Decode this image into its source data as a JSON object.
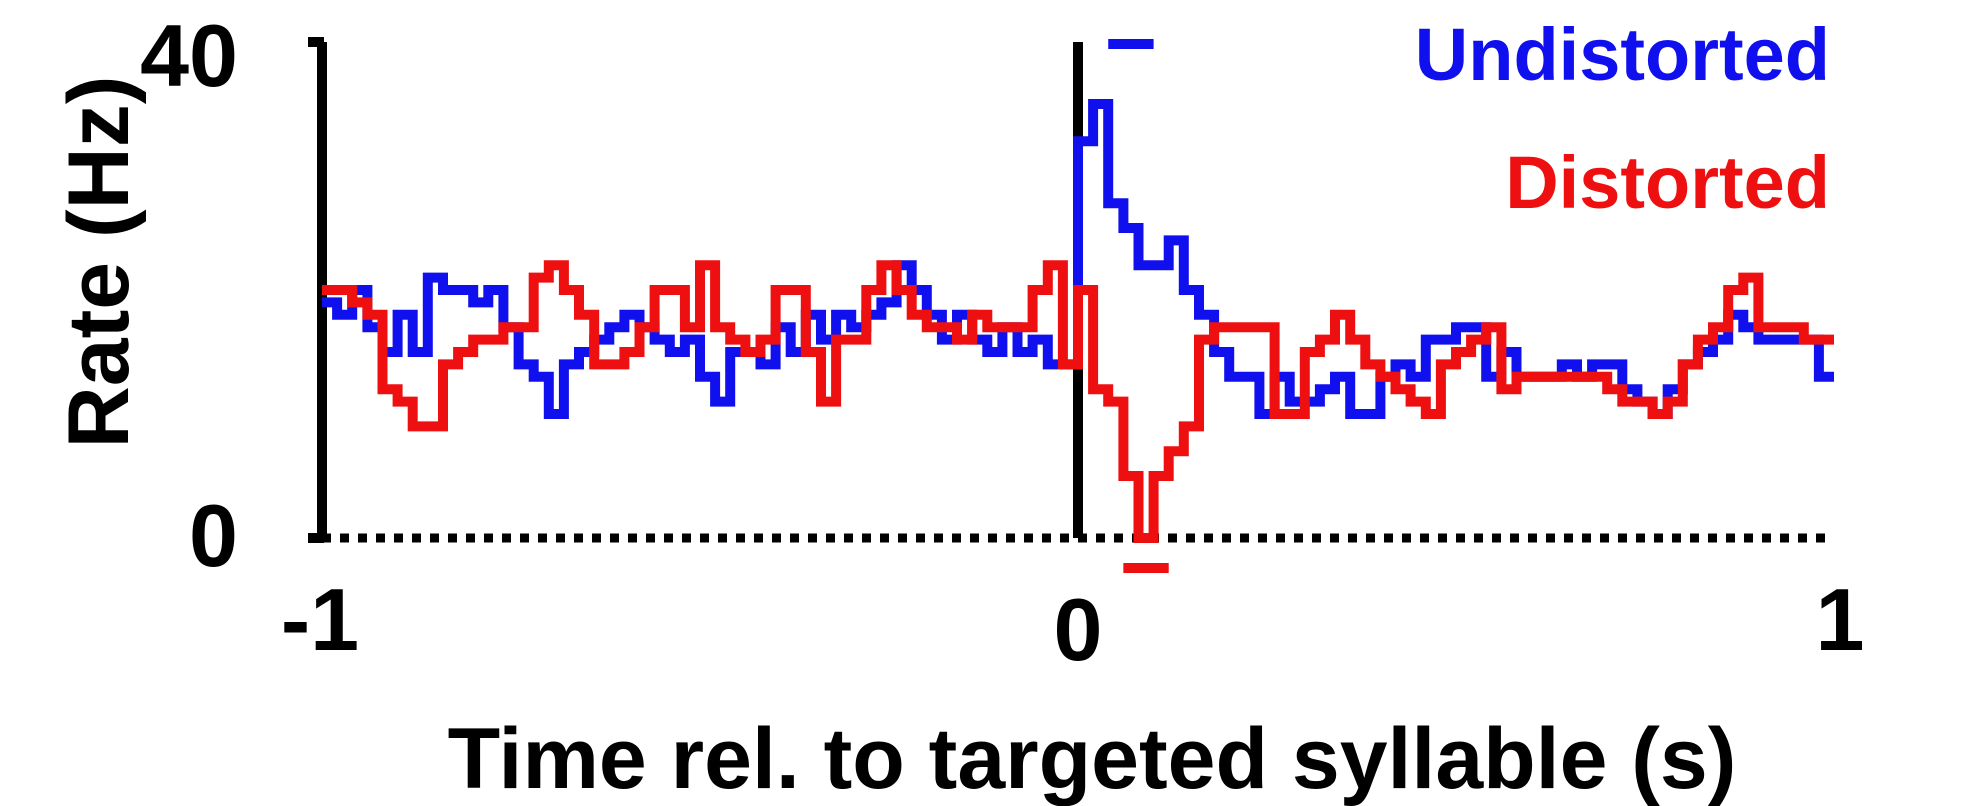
{
  "chart_data": {
    "type": "line",
    "step": true,
    "xlabel": "Time rel. to targeted syllable (s)",
    "ylabel": "Rate (Hz)",
    "xlim": [
      -1,
      1
    ],
    "ylim": [
      0,
      40
    ],
    "xticks": [
      {
        "value": -1,
        "label": "-1"
      },
      {
        "value": 0,
        "label": "0"
      },
      {
        "value": 1,
        "label": "1"
      }
    ],
    "yticks": [
      {
        "value": 0,
        "label": "0"
      },
      {
        "value": 40,
        "label": "40"
      }
    ],
    "legend_position": "top-right",
    "zero_line": "dotted",
    "event_marker_x": 0,
    "series": [
      {
        "name": "Undistorted",
        "color": "#1010ee",
        "x": [
          -1.0,
          -0.98,
          -0.96,
          -0.94,
          -0.92,
          -0.9,
          -0.88,
          -0.86,
          -0.84,
          -0.82,
          -0.8,
          -0.78,
          -0.76,
          -0.74,
          -0.72,
          -0.7,
          -0.68,
          -0.66,
          -0.64,
          -0.62,
          -0.6,
          -0.58,
          -0.56,
          -0.54,
          -0.52,
          -0.5,
          -0.48,
          -0.46,
          -0.44,
          -0.42,
          -0.4,
          -0.38,
          -0.36,
          -0.34,
          -0.32,
          -0.3,
          -0.28,
          -0.26,
          -0.24,
          -0.22,
          -0.2,
          -0.18,
          -0.16,
          -0.14,
          -0.12,
          -0.1,
          -0.08,
          -0.06,
          -0.04,
          -0.02,
          0.0,
          0.02,
          0.04,
          0.06,
          0.08,
          0.1,
          0.12,
          0.14,
          0.16,
          0.18,
          0.2,
          0.22,
          0.24,
          0.26,
          0.28,
          0.3,
          0.32,
          0.34,
          0.36,
          0.38,
          0.4,
          0.42,
          0.44,
          0.46,
          0.48,
          0.5,
          0.52,
          0.54,
          0.56,
          0.58,
          0.6,
          0.62,
          0.64,
          0.66,
          0.68,
          0.7,
          0.72,
          0.74,
          0.76,
          0.78,
          0.8,
          0.82,
          0.84,
          0.86,
          0.88,
          0.9,
          0.92,
          0.94,
          0.96,
          0.98
        ],
        "values": [
          19,
          18,
          20,
          17,
          15,
          18,
          15,
          21,
          20,
          20,
          19,
          20,
          17,
          14,
          13,
          10,
          14,
          15,
          16,
          17,
          18,
          17,
          16,
          15,
          16,
          13,
          11,
          15,
          15,
          14,
          17,
          15,
          18,
          16,
          18,
          17,
          18,
          19,
          22,
          20,
          18,
          16,
          18,
          16,
          15,
          17,
          15,
          16,
          14,
          14,
          32,
          35,
          27,
          25,
          22,
          22,
          24,
          20,
          18,
          15,
          13,
          13,
          10,
          13,
          11,
          11,
          12,
          13,
          10,
          10,
          13,
          14,
          13,
          16,
          16,
          17,
          17,
          13,
          15,
          13,
          13,
          13,
          14,
          13,
          14,
          14,
          12,
          11,
          10,
          12,
          14,
          15,
          16,
          18,
          17,
          16,
          16,
          16,
          16,
          13
        ]
      },
      {
        "name": "Distorted",
        "color": "#ee1010",
        "x": [
          -1.0,
          -0.98,
          -0.96,
          -0.94,
          -0.92,
          -0.9,
          -0.88,
          -0.86,
          -0.84,
          -0.82,
          -0.8,
          -0.78,
          -0.76,
          -0.74,
          -0.72,
          -0.7,
          -0.68,
          -0.66,
          -0.64,
          -0.62,
          -0.6,
          -0.58,
          -0.56,
          -0.54,
          -0.52,
          -0.5,
          -0.48,
          -0.46,
          -0.44,
          -0.42,
          -0.4,
          -0.38,
          -0.36,
          -0.34,
          -0.32,
          -0.3,
          -0.28,
          -0.26,
          -0.24,
          -0.22,
          -0.2,
          -0.18,
          -0.16,
          -0.14,
          -0.12,
          -0.1,
          -0.08,
          -0.06,
          -0.04,
          -0.02,
          0.0,
          0.02,
          0.04,
          0.06,
          0.08,
          0.1,
          0.12,
          0.14,
          0.16,
          0.18,
          0.2,
          0.22,
          0.24,
          0.26,
          0.28,
          0.3,
          0.32,
          0.34,
          0.36,
          0.38,
          0.4,
          0.42,
          0.44,
          0.46,
          0.48,
          0.5,
          0.52,
          0.54,
          0.56,
          0.58,
          0.6,
          0.62,
          0.64,
          0.66,
          0.68,
          0.7,
          0.72,
          0.74,
          0.76,
          0.78,
          0.8,
          0.82,
          0.84,
          0.86,
          0.88,
          0.9,
          0.92,
          0.94,
          0.96,
          0.98
        ],
        "values": [
          20,
          20,
          19,
          18,
          12,
          11,
          9,
          9,
          14,
          15,
          16,
          16,
          17,
          17,
          21,
          22,
          20,
          18,
          14,
          14,
          15,
          17,
          20,
          20,
          17,
          22,
          17,
          16,
          15,
          16,
          20,
          20,
          15,
          11,
          16,
          16,
          20,
          22,
          20,
          18,
          17,
          17,
          16,
          18,
          17,
          17,
          17,
          20,
          22,
          14,
          20,
          12,
          11,
          5,
          0,
          5,
          7,
          9,
          16,
          17,
          17,
          17,
          17,
          10,
          10,
          15,
          16,
          18,
          16,
          14,
          13,
          12,
          11,
          10,
          14,
          15,
          16,
          17,
          12,
          13,
          13,
          13,
          13,
          13,
          13,
          12,
          11,
          11,
          10,
          11,
          14,
          16,
          17,
          20,
          21,
          17,
          17,
          17,
          16,
          16
        ]
      }
    ],
    "significance_markers": [
      {
        "series": "Undistorted",
        "position": "above",
        "x_start": 0.04,
        "x_end": 0.1
      },
      {
        "series": "Distorted",
        "position": "below",
        "x_start": 0.06,
        "x_end": 0.12
      }
    ]
  }
}
